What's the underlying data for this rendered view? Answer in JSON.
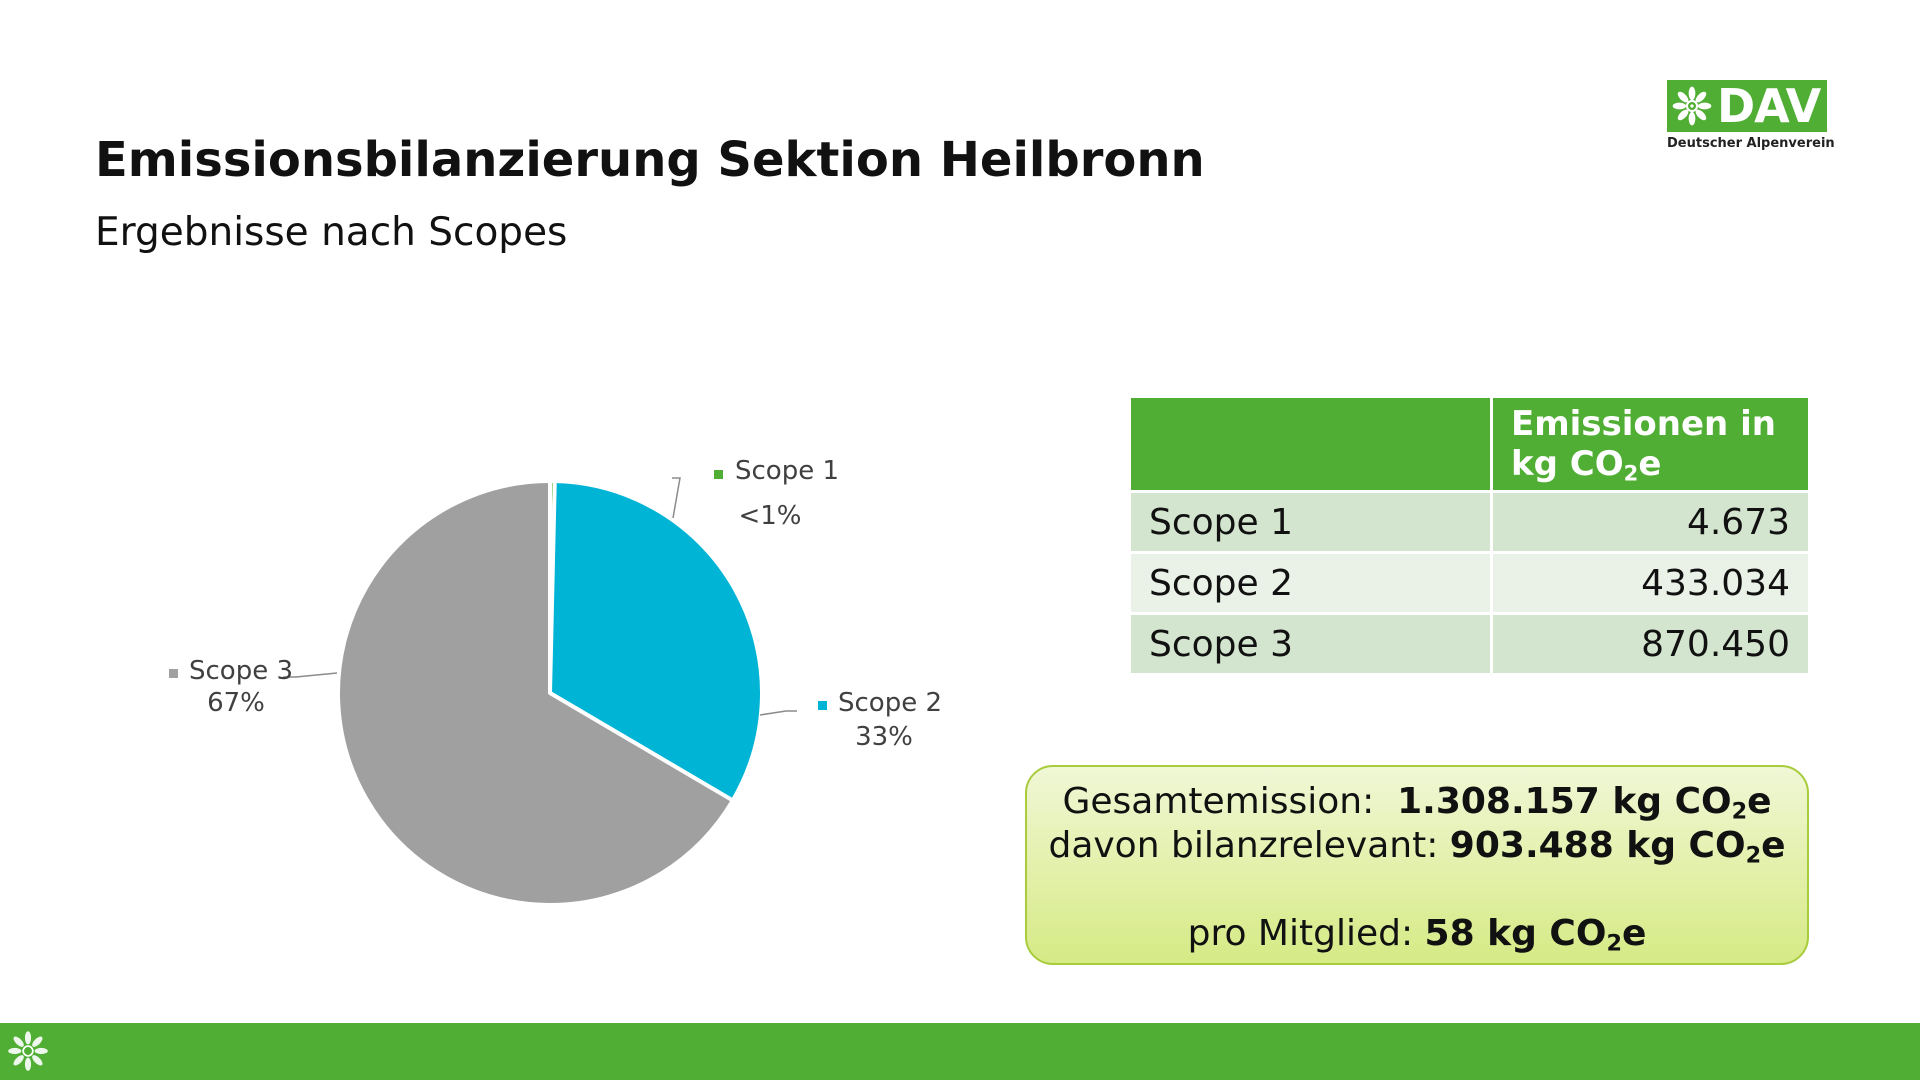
{
  "slide": {
    "title": "Emissionsbilanzierung Sektion Heilbronn",
    "subtitle": "Ergebnisse nach Scopes"
  },
  "logo": {
    "word": "DAV",
    "tagline": "Deutscher Alpenverein",
    "icon": "edelweiss-icon"
  },
  "colors": {
    "brand_green": "#4fae33",
    "scope1": "#4fae33",
    "scope2": "#00b4d6",
    "scope3": "#a0a0a0",
    "table_row_dark": "#d3e5cf",
    "table_row_light": "#eaf2e8",
    "summary_fill": "#e2f0a8",
    "summary_border": "#a8cc3c"
  },
  "chart_data": {
    "type": "pie",
    "title": "",
    "slices": [
      {
        "name": "Scope 1",
        "value": 4673,
        "label": "<1%"
      },
      {
        "name": "Scope 2",
        "value": 433034,
        "label": "33%"
      },
      {
        "name": "Scope 3",
        "value": 870450,
        "label": "67%"
      }
    ],
    "legend": "data labels next to slices"
  },
  "table": {
    "header": {
      "col1": "",
      "col2_line1": "Emissionen in",
      "col2_kg": "kg CO",
      "col2_sub": "2",
      "col2_tail": "e"
    },
    "rows": [
      {
        "label": "Scope 1",
        "value": "4.673"
      },
      {
        "label": "Scope 2",
        "value": "433.034"
      },
      {
        "label": "Scope 3",
        "value": "870.450"
      }
    ]
  },
  "summary": {
    "total_label": "Gesamtemission:",
    "total_value": "1.308.157 kg CO",
    "relevant_label": "davon bilanzrelevant:",
    "relevant_value": "903.488 kg CO",
    "member_label": "pro Mitglied:",
    "member_value": "58 kg CO",
    "sub": "2",
    "tail": "e"
  },
  "footer": {
    "icon": "edelweiss-icon"
  }
}
